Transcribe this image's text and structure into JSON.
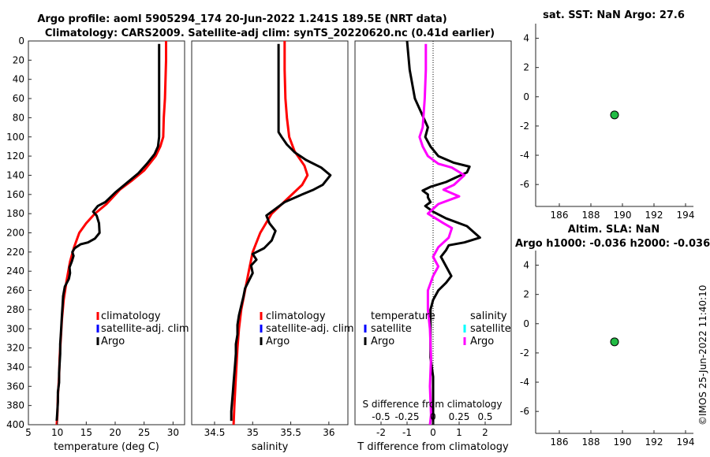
{
  "header": {
    "title1": "Argo profile: aoml 5905294_174 20-Jun-2022 1.241S 189.5E (NRT data)",
    "title2": "Climatology: CARS2009. Satellite-adj clim: synTS_20220620.nc (0.41d earlier)"
  },
  "watermark": "©IMOS 25-Jun-2022 11:40:10",
  "colors": {
    "climatology": "#ff0000",
    "satellite": "#0000ff",
    "argo": "#000000",
    "salinity_diff": "#ff00ff",
    "salinity_sat": "#00ffff",
    "marker_fill": "#22bb44"
  },
  "chart_data": [
    {
      "type": "line",
      "name": "temperature-profile",
      "xlabel": "temperature (deg C)",
      "ylabel": "",
      "xlim": [
        5,
        32
      ],
      "ylim": [
        0,
        400
      ],
      "xticks": [
        5,
        10,
        15,
        20,
        25,
        30
      ],
      "yticks": [
        0,
        20,
        40,
        60,
        80,
        100,
        120,
        140,
        160,
        180,
        200,
        220,
        240,
        260,
        280,
        300,
        320,
        340,
        360,
        380,
        400
      ],
      "legend": [
        "climatology",
        "satellite-adj. clim",
        "Argo"
      ],
      "series": [
        {
          "name": "climatology",
          "color": "#ff0000",
          "points": [
            [
              28.8,
              0
            ],
            [
              28.8,
              20
            ],
            [
              28.7,
              40
            ],
            [
              28.6,
              60
            ],
            [
              28.4,
              80
            ],
            [
              28.3,
              100
            ],
            [
              27.8,
              110
            ],
            [
              27.0,
              120
            ],
            [
              25.0,
              135
            ],
            [
              23.0,
              145
            ],
            [
              20.8,
              155
            ],
            [
              18.5,
              170
            ],
            [
              16.5,
              180
            ],
            [
              15.0,
              190
            ],
            [
              13.8,
              200
            ],
            [
              12.9,
              215
            ],
            [
              12.2,
              230
            ],
            [
              11.6,
              250
            ],
            [
              11.1,
              270
            ],
            [
              10.8,
              290
            ],
            [
              10.6,
              310
            ],
            [
              10.4,
              330
            ],
            [
              10.3,
              350
            ],
            [
              10.1,
              370
            ],
            [
              10.0,
              390
            ],
            [
              9.9,
              400
            ]
          ]
        },
        {
          "name": "Argo",
          "color": "#000000",
          "points": [
            [
              27.6,
              3
            ],
            [
              27.6,
              20
            ],
            [
              27.6,
              40
            ],
            [
              27.6,
              60
            ],
            [
              27.6,
              80
            ],
            [
              27.6,
              100
            ],
            [
              27.4,
              110
            ],
            [
              26.8,
              118
            ],
            [
              25.5,
              128
            ],
            [
              24.0,
              138
            ],
            [
              22.0,
              148
            ],
            [
              20.0,
              158
            ],
            [
              18.3,
              168
            ],
            [
              17.0,
              172
            ],
            [
              16.2,
              178
            ],
            [
              16.8,
              182
            ],
            [
              17.2,
              190
            ],
            [
              17.3,
              200
            ],
            [
              16.5,
              206
            ],
            [
              15.3,
              210
            ],
            [
              14.0,
              212
            ],
            [
              13.0,
              216
            ],
            [
              12.6,
              220
            ],
            [
              12.8,
              224
            ],
            [
              12.5,
              230
            ],
            [
              12.1,
              236
            ],
            [
              12.2,
              242
            ],
            [
              12.0,
              248
            ],
            [
              11.3,
              256
            ],
            [
              11.0,
              266
            ],
            [
              10.9,
              276
            ],
            [
              10.8,
              286
            ],
            [
              10.7,
              296
            ],
            [
              10.6,
              306
            ],
            [
              10.5,
              316
            ],
            [
              10.5,
              326
            ],
            [
              10.4,
              336
            ],
            [
              10.3,
              346
            ],
            [
              10.3,
              356
            ],
            [
              10.1,
              366
            ],
            [
              10.1,
              376
            ],
            [
              10.0,
              386
            ],
            [
              9.9,
              396
            ]
          ]
        }
      ]
    },
    {
      "type": "line",
      "name": "salinity-profile",
      "xlabel": "salinity",
      "ylabel": "",
      "xlim": [
        34.2,
        36.25
      ],
      "ylim": [
        0,
        400
      ],
      "xticks": [
        34.5,
        35,
        35.5,
        36
      ],
      "legend": [
        "climatology",
        "satellite-adj. clim",
        "Argo"
      ],
      "series": [
        {
          "name": "climatology",
          "color": "#ff0000",
          "points": [
            [
              35.42,
              0
            ],
            [
              35.42,
              30
            ],
            [
              35.43,
              60
            ],
            [
              35.45,
              80
            ],
            [
              35.48,
              100
            ],
            [
              35.55,
              115
            ],
            [
              35.68,
              130
            ],
            [
              35.72,
              140
            ],
            [
              35.65,
              150
            ],
            [
              35.45,
              165
            ],
            [
              35.25,
              180
            ],
            [
              35.1,
              200
            ],
            [
              35.0,
              220
            ],
            [
              34.95,
              240
            ],
            [
              34.9,
              260
            ],
            [
              34.85,
              280
            ],
            [
              34.82,
              300
            ],
            [
              34.8,
              320
            ],
            [
              34.78,
              350
            ],
            [
              34.76,
              380
            ],
            [
              34.75,
              400
            ]
          ]
        },
        {
          "name": "Argo",
          "color": "#000000",
          "points": [
            [
              35.34,
              3
            ],
            [
              35.34,
              20
            ],
            [
              35.34,
              40
            ],
            [
              35.34,
              60
            ],
            [
              35.34,
              80
            ],
            [
              35.34,
              95
            ],
            [
              35.38,
              100
            ],
            [
              35.45,
              108
            ],
            [
              35.55,
              116
            ],
            [
              35.7,
              124
            ],
            [
              35.9,
              132
            ],
            [
              36.02,
              140
            ],
            [
              35.92,
              150
            ],
            [
              35.8,
              155
            ],
            [
              35.65,
              160
            ],
            [
              35.42,
              168
            ],
            [
              35.3,
              175
            ],
            [
              35.18,
              182
            ],
            [
              35.22,
              190
            ],
            [
              35.3,
              198
            ],
            [
              35.25,
              208
            ],
            [
              35.15,
              216
            ],
            [
              35.0,
              222
            ],
            [
              35.05,
              228
            ],
            [
              34.98,
              234
            ],
            [
              35.0,
              242
            ],
            [
              34.95,
              250
            ],
            [
              34.9,
              258
            ],
            [
              34.88,
              266
            ],
            [
              34.85,
              276
            ],
            [
              34.82,
              286
            ],
            [
              34.8,
              296
            ],
            [
              34.8,
              306
            ],
            [
              34.78,
              316
            ],
            [
              34.78,
              326
            ],
            [
              34.77,
              336
            ],
            [
              34.76,
              346
            ],
            [
              34.75,
              356
            ],
            [
              34.74,
              366
            ],
            [
              34.73,
              376
            ],
            [
              34.72,
              386
            ],
            [
              34.72,
              396
            ]
          ]
        }
      ]
    },
    {
      "type": "line",
      "name": "difference-profile",
      "xlabel": "T difference from climatology",
      "xlabel_top": "S difference from climatology",
      "xlim": [
        -3,
        3
      ],
      "ylim": [
        0,
        400
      ],
      "xticks": [
        -2,
        -1,
        0,
        1,
        2
      ],
      "xticks_top": [
        -0.5,
        -0.25,
        0,
        0.25,
        0.5
      ],
      "xtick_labels_top": [
        "-0.5",
        "-0.25",
        "0",
        "0.25",
        "0.5"
      ],
      "legend_left_title": "temperature",
      "legend_right_title": "salinity",
      "legend_left": [
        "satellite",
        "Argo"
      ],
      "legend_right": [
        "satellite",
        "Argo"
      ],
      "series": [
        {
          "name": "T difference (Argo)",
          "color": "#000000",
          "points": [
            [
              -1.0,
              0
            ],
            [
              -0.9,
              30
            ],
            [
              -0.7,
              60
            ],
            [
              -0.2,
              90
            ],
            [
              -0.3,
              100
            ],
            [
              -0.1,
              110
            ],
            [
              0.2,
              120
            ],
            [
              0.8,
              127
            ],
            [
              1.4,
              131
            ],
            [
              1.3,
              137
            ],
            [
              0.9,
              142
            ],
            [
              0.5,
              147
            ],
            [
              -0.1,
              152
            ],
            [
              -0.4,
              156
            ],
            [
              -0.2,
              160
            ],
            [
              -0.2,
              163
            ],
            [
              -0.1,
              168
            ],
            [
              -0.3,
              172
            ],
            [
              0.0,
              178
            ],
            [
              0.5,
              185
            ],
            [
              1.3,
              193
            ],
            [
              1.8,
              205
            ],
            [
              1.2,
              210
            ],
            [
              0.6,
              213
            ],
            [
              0.5,
              218
            ],
            [
              0.3,
              225
            ],
            [
              0.5,
              235
            ],
            [
              0.7,
              245
            ],
            [
              0.5,
              252
            ],
            [
              0.2,
              260
            ],
            [
              0.0,
              270
            ],
            [
              -0.1,
              280
            ],
            [
              -0.1,
              300
            ],
            [
              -0.1,
              330
            ],
            [
              0.0,
              350
            ],
            [
              0.0,
              380
            ],
            [
              0.0,
              400
            ]
          ]
        },
        {
          "name": "S difference (Argo)",
          "color": "#ff00ff",
          "points": [
            [
              -0.07,
              3
            ],
            [
              -0.07,
              30
            ],
            [
              -0.08,
              60
            ],
            [
              -0.1,
              90
            ],
            [
              -0.13,
              100
            ],
            [
              -0.1,
              110
            ],
            [
              -0.05,
              120
            ],
            [
              0.05,
              128
            ],
            [
              0.18,
              132
            ],
            [
              0.3,
              140
            ],
            [
              0.2,
              150
            ],
            [
              0.1,
              155
            ],
            [
              0.25,
              162
            ],
            [
              0.05,
              170
            ],
            [
              -0.05,
              180
            ],
            [
              0.1,
              190
            ],
            [
              0.18,
              195
            ],
            [
              0.15,
              205
            ],
            [
              0.1,
              210
            ],
            [
              0.05,
              215
            ],
            [
              0.0,
              225
            ],
            [
              0.05,
              235
            ],
            [
              0.0,
              245
            ],
            [
              -0.05,
              260
            ],
            [
              -0.05,
              280
            ],
            [
              -0.03,
              300
            ],
            [
              -0.02,
              330
            ],
            [
              -0.03,
              360
            ],
            [
              -0.02,
              390
            ],
            [
              -0.03,
              400
            ]
          ]
        }
      ]
    },
    {
      "type": "scatter",
      "name": "sst-map",
      "title": "sat. SST: NaN Argo: 27.6",
      "xlim": [
        184.5,
        194.5
      ],
      "ylim": [
        -7.5,
        5
      ],
      "xticks": [
        186,
        188,
        190,
        192,
        194
      ],
      "yticks": [
        -6,
        -4,
        -2,
        0,
        2,
        4
      ],
      "points": [
        {
          "x": 189.5,
          "y": -1.24
        }
      ]
    },
    {
      "type": "scatter",
      "name": "sla-map",
      "title": "Altim. SLA: NaN",
      "subtitle": "Argo h1000: -0.036 h2000: -0.036",
      "xlim": [
        184.5,
        194.5
      ],
      "ylim": [
        -7.5,
        5
      ],
      "xticks": [
        186,
        188,
        190,
        192,
        194
      ],
      "yticks": [
        -6,
        -4,
        -2,
        0,
        2,
        4
      ],
      "points": [
        {
          "x": 189.5,
          "y": -1.24
        }
      ]
    }
  ]
}
